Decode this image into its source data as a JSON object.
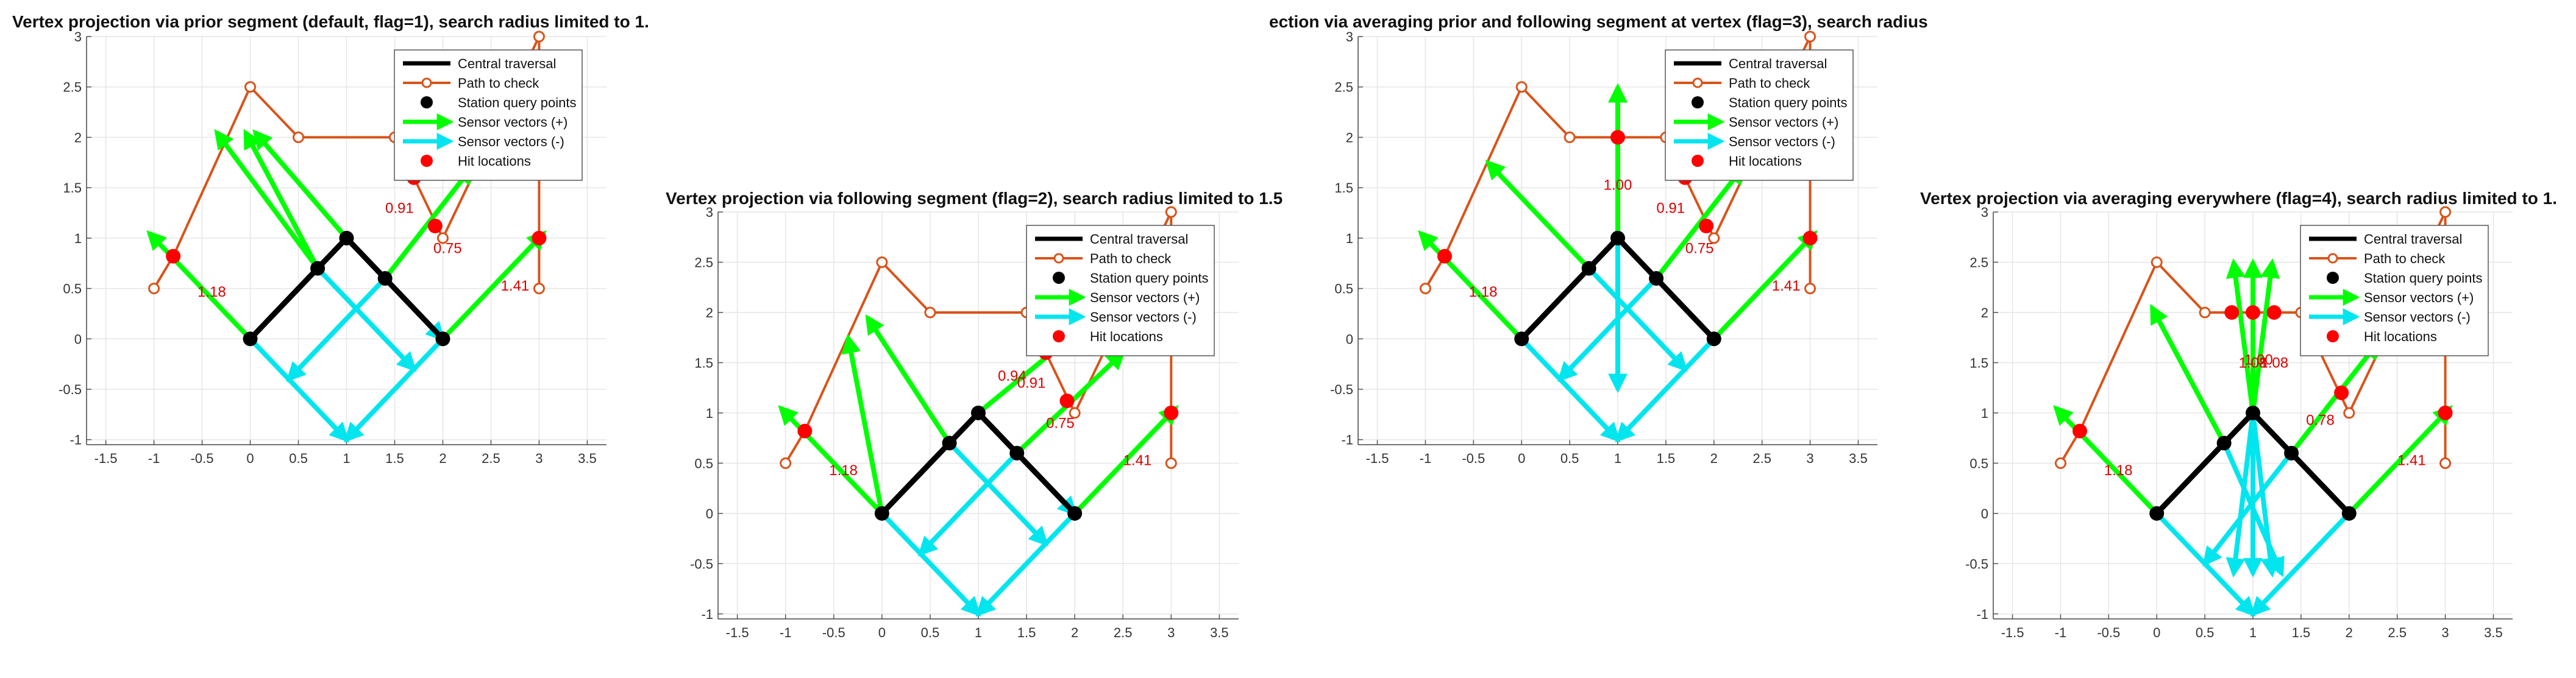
{
  "chart_data": [
    {
      "type": "line",
      "title": "Vertex projection via prior segment (default, flag=1), search radius limited to 1.",
      "xlim": [
        -1.7,
        3.7
      ],
      "ylim": [
        -1.05,
        3
      ],
      "xticks": [
        "-1.5",
        "-1",
        "-0.5",
        "0",
        "0.5",
        "1",
        "1.5",
        "2",
        "2.5",
        "3",
        "3.5"
      ],
      "yticks": [
        "-1",
        "-0.5",
        "0",
        "0.5",
        "1",
        "1.5",
        "2",
        "2.5",
        "3"
      ],
      "grid": true,
      "legend_position": "top-right",
      "legend": [
        "Central traversal",
        "Path to check",
        "Station query points",
        "Sensor vectors (+)",
        "Sensor vectors (-)",
        "Hit locations"
      ],
      "central": [
        [
          0,
          0
        ],
        [
          1,
          1
        ],
        [
          2,
          0
        ]
      ],
      "path": [
        [
          -1,
          0.5
        ],
        [
          -0.8,
          0.82
        ],
        [
          0,
          2.5
        ],
        [
          0.5,
          2
        ],
        [
          1.5,
          2
        ],
        [
          2,
          1
        ],
        [
          3,
          3
        ],
        [
          3,
          1
        ],
        [
          3,
          0.5
        ]
      ],
      "stations": [
        [
          0,
          0
        ],
        [
          0.7,
          0.7
        ],
        [
          1,
          1
        ],
        [
          1.4,
          0.6
        ],
        [
          2,
          0
        ]
      ],
      "plus": [
        [
          0,
          0,
          -1.05,
          1.05
        ],
        [
          0.7,
          0.7,
          -0.35,
          2.05
        ],
        [
          0.7,
          0.7,
          -0.05,
          2.05
        ],
        [
          1,
          1,
          0.05,
          2.05
        ],
        [
          1.4,
          0.6,
          2.3,
          1.7
        ],
        [
          2,
          0,
          3.05,
          1.05
        ]
      ],
      "minus": [
        [
          0,
          0,
          1,
          -1
        ],
        [
          0.7,
          0.7,
          1.7,
          -0.3
        ],
        [
          1,
          1,
          2,
          0
        ],
        [
          1.4,
          0.6,
          0.4,
          -0.4
        ],
        [
          2,
          0,
          1,
          -1
        ]
      ],
      "hits": [
        [
          -0.8,
          0.82
        ],
        [
          1.7,
          1.6
        ],
        [
          1.92,
          1.12
        ],
        [
          3,
          1
        ]
      ],
      "labels": [
        {
          "x": -0.4,
          "y": 0.42,
          "t": "1.18"
        },
        {
          "x": 1.55,
          "y": 1.25,
          "t": "0.91"
        },
        {
          "x": 2.05,
          "y": 0.85,
          "t": "0.75"
        },
        {
          "x": 2.75,
          "y": 0.48,
          "t": "1.41"
        }
      ]
    },
    {
      "type": "line",
      "title": "Vertex projection via following segment (flag=2), search radius limited to 1.5",
      "xlim": [
        -1.7,
        3.7
      ],
      "ylim": [
        -1.05,
        3
      ],
      "xticks": [
        "-1.5",
        "-1",
        "-0.5",
        "0",
        "0.5",
        "1",
        "1.5",
        "2",
        "2.5",
        "3",
        "3.5"
      ],
      "yticks": [
        "-1",
        "-0.5",
        "0",
        "0.5",
        "1",
        "1.5",
        "2",
        "2.5",
        "3"
      ],
      "grid": true,
      "legend_position": "top-right",
      "legend": [
        "Central traversal",
        "Path to check",
        "Station query points",
        "Sensor vectors (+)",
        "Sensor vectors (-)",
        "Hit locations"
      ],
      "central": [
        [
          0,
          0
        ],
        [
          1,
          1
        ],
        [
          2,
          0
        ]
      ],
      "path": [
        [
          -1,
          0.5
        ],
        [
          -0.8,
          0.82
        ],
        [
          0,
          2.5
        ],
        [
          0.5,
          2
        ],
        [
          1.5,
          2
        ],
        [
          2,
          1
        ],
        [
          3,
          3
        ],
        [
          3,
          1
        ],
        [
          3,
          0.5
        ]
      ],
      "stations": [
        [
          0,
          0
        ],
        [
          0.7,
          0.7
        ],
        [
          1,
          1
        ],
        [
          1.4,
          0.6
        ],
        [
          2,
          0
        ]
      ],
      "plus": [
        [
          0,
          0,
          -1.05,
          1.05
        ],
        [
          0,
          0,
          -0.35,
          1.75
        ],
        [
          0.7,
          0.7,
          -0.15,
          1.95
        ],
        [
          1,
          1,
          2.4,
          2.1
        ],
        [
          1.4,
          0.6,
          2.5,
          1.6
        ],
        [
          2,
          0,
          3.05,
          1.05
        ]
      ],
      "minus": [
        [
          0,
          0,
          1,
          -1
        ],
        [
          0.7,
          0.7,
          1.7,
          -0.3
        ],
        [
          1,
          1,
          2,
          0
        ],
        [
          1.4,
          0.6,
          0.4,
          -0.4
        ],
        [
          2,
          0,
          1,
          -1
        ]
      ],
      "hits": [
        [
          -0.8,
          0.82
        ],
        [
          1.7,
          1.6
        ],
        [
          1.92,
          1.12
        ],
        [
          3,
          1
        ]
      ],
      "labels": [
        {
          "x": -0.4,
          "y": 0.38,
          "t": "1.18"
        },
        {
          "x": 1.35,
          "y": 1.32,
          "t": "0.94"
        },
        {
          "x": 1.55,
          "y": 1.25,
          "t": "0.91"
        },
        {
          "x": 1.85,
          "y": 0.85,
          "t": "0.75"
        },
        {
          "x": 2.65,
          "y": 0.48,
          "t": "1.41"
        }
      ]
    },
    {
      "type": "line",
      "title": "ection via averaging prior and following segment at vertex (flag=3), search radius",
      "xlim": [
        -1.7,
        3.7
      ],
      "ylim": [
        -1.05,
        3
      ],
      "xticks": [
        "-1.5",
        "-1",
        "-0.5",
        "0",
        "0.5",
        "1",
        "1.5",
        "2",
        "2.5",
        "3",
        "3.5"
      ],
      "yticks": [
        "-1",
        "-0.5",
        "0",
        "0.5",
        "1",
        "1.5",
        "2",
        "2.5",
        "3"
      ],
      "grid": true,
      "legend_position": "top-right",
      "legend": [
        "Central traversal",
        "Path to check",
        "Station query points",
        "Sensor vectors (+)",
        "Sensor vectors (-)",
        "Hit locations"
      ],
      "central": [
        [
          0,
          0
        ],
        [
          1,
          1
        ],
        [
          2,
          0
        ]
      ],
      "path": [
        [
          -1,
          0.5
        ],
        [
          -0.8,
          0.82
        ],
        [
          0,
          2.5
        ],
        [
          0.5,
          2
        ],
        [
          1.5,
          2
        ],
        [
          2,
          1
        ],
        [
          3,
          3
        ],
        [
          3,
          1
        ],
        [
          3,
          0.5
        ]
      ],
      "stations": [
        [
          0,
          0
        ],
        [
          0.7,
          0.7
        ],
        [
          1,
          1
        ],
        [
          1.4,
          0.6
        ],
        [
          2,
          0
        ]
      ],
      "plus": [
        [
          0,
          0,
          -1.05,
          1.05
        ],
        [
          0.7,
          0.7,
          -0.35,
          1.75
        ],
        [
          1,
          1,
          1,
          2.5
        ],
        [
          1.4,
          0.6,
          2.3,
          1.7
        ],
        [
          2,
          0,
          3.05,
          1.05
        ]
      ],
      "minus": [
        [
          0,
          0,
          1,
          -1
        ],
        [
          0.7,
          0.7,
          1.7,
          -0.3
        ],
        [
          1,
          1,
          1,
          -0.5
        ],
        [
          1.4,
          0.6,
          0.4,
          -0.4
        ],
        [
          2,
          0,
          1,
          -1
        ]
      ],
      "hits": [
        [
          -0.8,
          0.82
        ],
        [
          1,
          2
        ],
        [
          1.7,
          1.6
        ],
        [
          1.92,
          1.12
        ],
        [
          3,
          1
        ]
      ],
      "labels": [
        {
          "x": -0.4,
          "y": 0.42,
          "t": "1.18"
        },
        {
          "x": 1,
          "y": 1.48,
          "t": "1.00"
        },
        {
          "x": 1.55,
          "y": 1.25,
          "t": "0.91"
        },
        {
          "x": 1.85,
          "y": 0.85,
          "t": "0.75"
        },
        {
          "x": 2.75,
          "y": 0.48,
          "t": "1.41"
        }
      ]
    },
    {
      "type": "line",
      "title": "Vertex projection via averaging everywhere (flag=4), search radius limited to 1.",
      "xlim": [
        -1.7,
        3.7
      ],
      "ylim": [
        -1.05,
        3
      ],
      "xticks": [
        "-1.5",
        "-1",
        "-0.5",
        "0",
        "0.5",
        "1",
        "1.5",
        "2",
        "2.5",
        "3",
        "3.5"
      ],
      "yticks": [
        "-1",
        "-0.5",
        "0",
        "0.5",
        "1",
        "1.5",
        "2",
        "2.5",
        "3"
      ],
      "grid": true,
      "legend_position": "top-right",
      "legend": [
        "Central traversal",
        "Path to check",
        "Station query points",
        "Sensor vectors (+)",
        "Sensor vectors (-)",
        "Hit locations"
      ],
      "central": [
        [
          0,
          0
        ],
        [
          1,
          1
        ],
        [
          2,
          0
        ]
      ],
      "path": [
        [
          -1,
          0.5
        ],
        [
          -0.8,
          0.82
        ],
        [
          0,
          2.5
        ],
        [
          0.5,
          2
        ],
        [
          1.5,
          2
        ],
        [
          2,
          1
        ],
        [
          3,
          3
        ],
        [
          3,
          1
        ],
        [
          3,
          0.5
        ]
      ],
      "stations": [
        [
          0,
          0
        ],
        [
          0.7,
          0.7
        ],
        [
          1,
          1
        ],
        [
          1.4,
          0.6
        ],
        [
          2,
          0
        ]
      ],
      "plus": [
        [
          0,
          0,
          -1.05,
          1.05
        ],
        [
          0.7,
          0.7,
          -0.05,
          2.05
        ],
        [
          1,
          1,
          0.8,
          2.5
        ],
        [
          1,
          1,
          1,
          2.5
        ],
        [
          1,
          1,
          1.2,
          2.5
        ],
        [
          1.4,
          0.6,
          2.3,
          1.7
        ],
        [
          2,
          0,
          3.05,
          1.05
        ]
      ],
      "minus": [
        [
          0,
          0,
          1,
          -1
        ],
        [
          0.7,
          0.7,
          1.3,
          -0.6
        ],
        [
          1,
          1,
          0.8,
          -0.6
        ],
        [
          1,
          1,
          1,
          -0.6
        ],
        [
          1,
          1,
          1.2,
          -0.6
        ],
        [
          1.4,
          0.6,
          0.5,
          -0.5
        ],
        [
          2,
          0,
          1,
          -1
        ]
      ],
      "hits": [
        [
          -0.8,
          0.82
        ],
        [
          0.78,
          2
        ],
        [
          1,
          2
        ],
        [
          1.22,
          2
        ],
        [
          1.92,
          1.2
        ],
        [
          3,
          1
        ]
      ],
      "labels": [
        {
          "x": -0.4,
          "y": 0.38,
          "t": "1.18"
        },
        {
          "x": 1,
          "y": 1.45,
          "t": "1.08"
        },
        {
          "x": 1.06,
          "y": 1.48,
          "t": "1.00"
        },
        {
          "x": 1.22,
          "y": 1.45,
          "t": "1.08"
        },
        {
          "x": 1.7,
          "y": 0.88,
          "t": "0.78"
        },
        {
          "x": 2.65,
          "y": 0.48,
          "t": "1.41"
        }
      ]
    }
  ]
}
